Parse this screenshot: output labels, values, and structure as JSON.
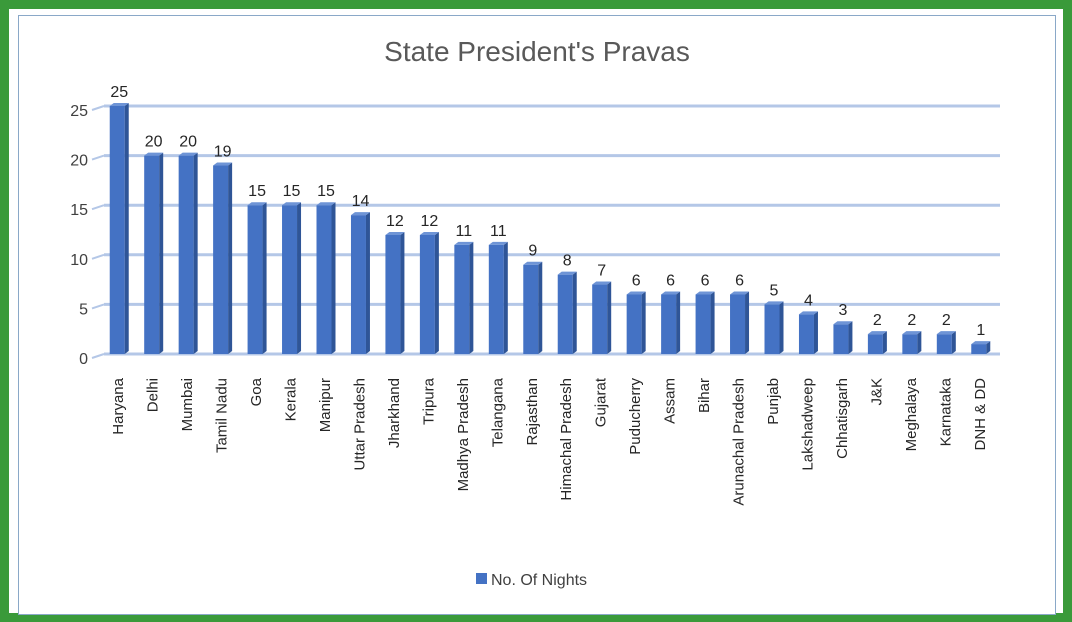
{
  "chart_data": {
    "type": "bar",
    "title": "State President's Pravas",
    "xlabel": "",
    "ylabel": "",
    "ylim": [
      0,
      25
    ],
    "yticks": [
      0,
      5,
      10,
      15,
      20,
      25
    ],
    "grid": true,
    "legend_position": "bottom",
    "categories": [
      "Haryana",
      "Delhi",
      "Mumbai",
      "Tamil Nadu",
      "Goa",
      "Kerala",
      "Manipur",
      "Uttar Pradesh",
      "Jharkhand",
      "Tripura",
      "Madhya Pradesh",
      "Telangana",
      "Rajasthan",
      "Himachal Pradesh",
      "Gujarat",
      "Puducherry",
      "Assam",
      "Bihar",
      "Arunachal Pradesh",
      "Punjab",
      "Lakshadweep",
      "Chhatisgarh",
      "J&K",
      "Meghalaya",
      "Karnataka",
      "DNH & DD"
    ],
    "series": [
      {
        "name": "No. Of Nights",
        "color": "#4472c4",
        "values": [
          25,
          20,
          20,
          19,
          15,
          15,
          15,
          14,
          12,
          12,
          11,
          11,
          9,
          8,
          7,
          6,
          6,
          6,
          6,
          5,
          4,
          3,
          2,
          2,
          2,
          1
        ]
      }
    ]
  },
  "colors": {
    "frame": "#3a9a3a",
    "bar": "#4472c4",
    "bar_side": "#2f5597",
    "gridline": "#b4c7e7"
  }
}
